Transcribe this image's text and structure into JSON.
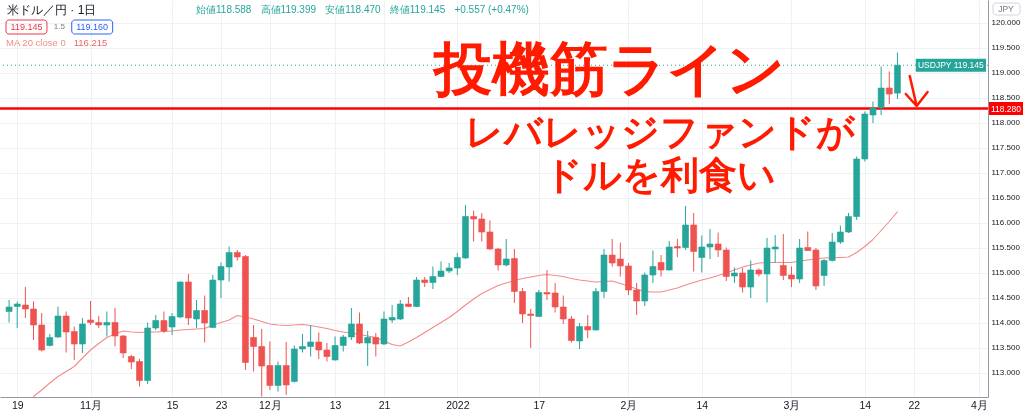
{
  "chart_data": {
    "type": "candlestick",
    "categories": [
      null,
      "19",
      null,
      null,
      null,
      null,
      null,
      null,
      null,
      null,
      "11月",
      null,
      null,
      null,
      null,
      null,
      null,
      null,
      null,
      null,
      "15",
      null,
      null,
      null,
      null,
      null,
      "23",
      null,
      null,
      null,
      null,
      null,
      "12月",
      null,
      null,
      null,
      null,
      null,
      null,
      null,
      "13",
      null,
      null,
      null,
      null,
      null,
      "21",
      null,
      null,
      null,
      null,
      null,
      null,
      null,
      null,
      "2022",
      null,
      null,
      null,
      null,
      null,
      null,
      null,
      null,
      null,
      "17",
      null,
      null,
      null,
      null,
      null,
      null,
      null,
      null,
      null,
      null,
      "2月",
      null,
      null,
      null,
      null,
      null,
      null,
      null,
      null,
      "14",
      null,
      null,
      null,
      null,
      null,
      null,
      null,
      null,
      null,
      null,
      "3月",
      null,
      null,
      null,
      null,
      null,
      null,
      null,
      null,
      "14",
      null,
      null,
      null,
      null,
      null,
      "22",
      null,
      null,
      null,
      null,
      null,
      null,
      null,
      "4月"
    ],
    "ohlc": [
      [
        114.22,
        114.45,
        114.0,
        114.31
      ],
      [
        114.32,
        114.42,
        113.89,
        114.37
      ],
      [
        114.35,
        114.71,
        114.09,
        114.27
      ],
      [
        114.27,
        114.42,
        113.65,
        113.95
      ],
      [
        113.95,
        114.19,
        113.42,
        113.45
      ],
      [
        113.54,
        113.77,
        113.52,
        113.7
      ],
      [
        113.71,
        114.32,
        113.69,
        114.13
      ],
      [
        114.13,
        114.22,
        113.4,
        113.81
      ],
      [
        113.82,
        113.92,
        113.25,
        113.57
      ],
      [
        113.57,
        114.09,
        113.39,
        113.97
      ],
      [
        114.05,
        114.43,
        113.95,
        114.0
      ],
      [
        114.0,
        114.13,
        113.89,
        113.95
      ],
      [
        113.95,
        114.22,
        113.72,
        114.0
      ],
      [
        114.0,
        114.29,
        113.52,
        113.73
      ],
      [
        113.73,
        113.75,
        113.29,
        113.39
      ],
      [
        113.32,
        113.35,
        113.07,
        113.21
      ],
      [
        113.22,
        113.27,
        112.72,
        112.84
      ],
      [
        112.84,
        114.0,
        112.77,
        113.89
      ],
      [
        113.89,
        114.15,
        113.85,
        114.04
      ],
      [
        114.04,
        114.22,
        113.79,
        113.83
      ],
      [
        113.91,
        114.19,
        113.75,
        114.12
      ],
      [
        114.11,
        114.82,
        114.09,
        114.81
      ],
      [
        114.81,
        114.97,
        113.95,
        114.09
      ],
      [
        114.07,
        114.45,
        113.89,
        114.24
      ],
      [
        114.24,
        114.54,
        113.6,
        113.99
      ],
      [
        113.9,
        114.95,
        113.89,
        114.85
      ],
      [
        114.85,
        115.2,
        114.49,
        115.12
      ],
      [
        115.11,
        115.52,
        114.82,
        115.4
      ],
      [
        115.4,
        115.45,
        115.24,
        115.31
      ],
      [
        115.32,
        115.35,
        113.05,
        113.2
      ],
      [
        113.7,
        113.95,
        113.02,
        113.52
      ],
      [
        113.52,
        113.87,
        112.52,
        113.13
      ],
      [
        113.14,
        113.62,
        112.65,
        112.74
      ],
      [
        112.74,
        113.22,
        112.62,
        113.14
      ],
      [
        113.14,
        113.61,
        112.55,
        112.75
      ],
      [
        112.82,
        113.54,
        112.8,
        113.47
      ],
      [
        113.47,
        113.77,
        113.4,
        113.52
      ],
      [
        113.52,
        113.95,
        113.32,
        113.61
      ],
      [
        113.61,
        113.8,
        113.27,
        113.45
      ],
      [
        113.45,
        113.59,
        113.22,
        113.32
      ],
      [
        113.25,
        113.72,
        113.24,
        113.54
      ],
      [
        113.54,
        113.75,
        113.42,
        113.71
      ],
      [
        113.71,
        114.29,
        113.65,
        113.97
      ],
      [
        113.97,
        114.2,
        113.57,
        113.59
      ],
      [
        113.59,
        113.83,
        113.13,
        113.7
      ],
      [
        113.7,
        113.79,
        113.32,
        113.57
      ],
      [
        113.57,
        114.22,
        113.55,
        114.07
      ],
      [
        114.05,
        114.35,
        113.99,
        114.1
      ],
      [
        114.07,
        114.45,
        114.05,
        114.37
      ],
      [
        114.37,
        114.51,
        114.31,
        114.32
      ],
      [
        114.32,
        114.91,
        114.31,
        114.85
      ],
      [
        114.85,
        114.91,
        114.71,
        114.8
      ],
      [
        114.8,
        115.12,
        114.67,
        114.92
      ],
      [
        114.92,
        115.22,
        114.91,
        115.03
      ],
      [
        115.03,
        115.19,
        114.99,
        115.09
      ],
      [
        115.09,
        115.39,
        114.95,
        115.3
      ],
      [
        115.29,
        116.35,
        115.27,
        116.12
      ],
      [
        116.12,
        116.24,
        115.62,
        116.07
      ],
      [
        116.07,
        116.19,
        115.62,
        115.81
      ],
      [
        115.81,
        116.04,
        115.45,
        115.47
      ],
      [
        115.47,
        115.49,
        115.04,
        115.15
      ],
      [
        115.15,
        115.67,
        115.12,
        115.27
      ],
      [
        115.28,
        115.47,
        114.39,
        114.62
      ],
      [
        114.62,
        114.69,
        113.99,
        114.17
      ],
      [
        114.17,
        114.27,
        113.49,
        114.14
      ],
      [
        114.12,
        114.65,
        114.11,
        114.6
      ],
      [
        114.6,
        115.05,
        114.45,
        114.57
      ],
      [
        114.59,
        114.79,
        114.2,
        114.31
      ],
      [
        114.31,
        114.54,
        113.97,
        114.07
      ],
      [
        114.07,
        114.13,
        113.6,
        113.64
      ],
      [
        113.63,
        113.99,
        113.47,
        113.92
      ],
      [
        113.92,
        114.15,
        113.69,
        113.85
      ],
      [
        113.85,
        114.69,
        113.84,
        114.62
      ],
      [
        114.62,
        115.47,
        114.49,
        115.35
      ],
      [
        115.35,
        115.67,
        115.12,
        115.19
      ],
      [
        115.27,
        115.6,
        114.92,
        115.13
      ],
      [
        115.13,
        115.19,
        114.55,
        114.65
      ],
      [
        114.65,
        114.79,
        114.15,
        114.43
      ],
      [
        114.43,
        115.0,
        114.33,
        114.95
      ],
      [
        114.95,
        115.44,
        114.79,
        115.12
      ],
      [
        115.2,
        115.35,
        114.92,
        115.05
      ],
      [
        115.05,
        115.63,
        115.04,
        115.51
      ],
      [
        115.52,
        115.67,
        115.31,
        115.49
      ],
      [
        115.5,
        116.33,
        115.45,
        115.95
      ],
      [
        115.95,
        116.19,
        115.02,
        115.42
      ],
      [
        115.3,
        115.74,
        115.0,
        115.51
      ],
      [
        115.51,
        115.87,
        115.27,
        115.57
      ],
      [
        115.57,
        115.8,
        115.31,
        115.45
      ],
      [
        115.45,
        115.5,
        114.83,
        114.92
      ],
      [
        114.93,
        115.1,
        114.79,
        114.99
      ],
      [
        114.99,
        115.09,
        114.6,
        114.71
      ],
      [
        114.71,
        115.24,
        114.49,
        115.05
      ],
      [
        115.05,
        115.08,
        114.92,
        114.97
      ],
      [
        114.97,
        115.69,
        114.4,
        115.49
      ],
      [
        115.47,
        115.75,
        115.19,
        115.51
      ],
      [
        115.14,
        115.77,
        114.85,
        114.94
      ],
      [
        114.95,
        115.12,
        114.71,
        114.87
      ],
      [
        114.87,
        115.67,
        114.79,
        115.49
      ],
      [
        115.5,
        115.82,
        115.44,
        115.44
      ],
      [
        115.45,
        115.49,
        114.65,
        114.73
      ],
      [
        114.94,
        115.27,
        114.73,
        115.24
      ],
      [
        115.24,
        115.79,
        115.22,
        115.61
      ],
      [
        115.61,
        115.94,
        115.57,
        115.81
      ],
      [
        115.81,
        116.19,
        115.79,
        116.12
      ],
      [
        116.12,
        117.32,
        116.05,
        117.27
      ],
      [
        117.27,
        118.22,
        117.22,
        118.17
      ],
      [
        118.15,
        118.42,
        117.99,
        118.29
      ],
      [
        118.29,
        119.12,
        118.15,
        118.69
      ],
      [
        118.69,
        119.02,
        118.37,
        118.57
      ],
      [
        118.588,
        119.399,
        118.47,
        119.145
      ],
      null,
      null,
      null,
      null,
      null,
      null,
      null,
      null,
      null,
      null
    ],
    "colors": [
      "#26a69a",
      "#26a69a",
      "#ef5350",
      "#ef5350",
      "#ef5350",
      "#26a69a",
      "#26a69a",
      "#ef5350",
      "#ef5350",
      "#26a69a",
      "#ef5350",
      "#ef5350",
      "#26a69a",
      "#ef5350",
      "#ef5350",
      "#ef5350",
      "#ef5350",
      "#26a69a",
      "#26a69a",
      "#ef5350",
      "#26a69a",
      "#26a69a",
      "#ef5350",
      "#26a69a",
      "#ef5350",
      "#26a69a",
      "#26a69a",
      "#26a69a",
      "#ef5350",
      "#ef5350",
      "#ef5350",
      "#ef5350",
      "#ef5350",
      "#26a69a",
      "#ef5350",
      "#26a69a",
      "#26a69a",
      "#26a69a",
      "#ef5350",
      "#ef5350",
      "#26a69a",
      "#26a69a",
      "#26a69a",
      "#ef5350",
      "#26a69a",
      "#ef5350",
      "#26a69a",
      "#26a69a",
      "#26a69a",
      "#ef5350",
      "#26a69a",
      "#ef5350",
      "#26a69a",
      "#26a69a",
      "#26a69a",
      "#26a69a",
      "#26a69a",
      "#ef5350",
      "#ef5350",
      "#ef5350",
      "#ef5350",
      "#26a69a",
      "#ef5350",
      "#ef5350",
      "#ef5350",
      "#26a69a",
      "#ef5350",
      "#ef5350",
      "#ef5350",
      "#ef5350",
      "#26a69a",
      "#ef5350",
      "#26a69a",
      "#26a69a",
      "#ef5350",
      "#ef5350",
      "#ef5350",
      "#ef5350",
      "#26a69a",
      "#26a69a",
      "#ef5350",
      "#26a69a",
      "#ef5350",
      "#26a69a",
      "#ef5350",
      "#26a69a",
      "#26a69a",
      "#ef5350",
      "#ef5350",
      "#26a69a",
      "#ef5350",
      "#26a69a",
      "#ef5350",
      "#26a69a",
      "#26a69a",
      "#ef5350",
      "#ef5350",
      "#26a69a",
      "#ef5350",
      "#ef5350",
      "#26a69a",
      "#26a69a",
      "#26a69a",
      "#26a69a",
      "#26a69a",
      "#26a69a",
      "#26a69a",
      "#26a69a",
      "#ef5350",
      "#26a69a",
      null,
      null,
      null,
      null,
      null,
      null,
      null,
      null,
      null,
      null
    ],
    "series": [
      {
        "name": "MA 20 close 0",
        "type": "line",
        "color": "#f48a8a",
        "values": [
          null,
          null,
          null,
          112.52,
          112.65,
          112.79,
          112.92,
          113.02,
          113.12,
          113.29,
          113.45,
          113.58,
          113.7,
          113.77,
          113.83,
          113.81,
          113.8,
          113.81,
          113.81,
          113.82,
          113.83,
          113.85,
          113.86,
          113.87,
          113.88,
          113.95,
          114.0,
          114.05,
          114.14,
          114.11,
          114.07,
          114.02,
          113.97,
          113.95,
          113.94,
          113.95,
          113.96,
          113.94,
          113.91,
          113.88,
          113.84,
          113.81,
          113.79,
          113.76,
          113.73,
          113.7,
          113.63,
          113.56,
          113.53,
          113.61,
          113.7,
          113.8,
          113.9,
          114.0,
          114.1,
          114.22,
          114.35,
          114.47,
          114.58,
          114.66,
          114.74,
          114.79,
          114.84,
          114.88,
          114.91,
          114.94,
          114.96,
          114.94,
          114.92,
          114.88,
          114.85,
          114.83,
          114.81,
          114.82,
          114.83,
          114.78,
          114.73,
          114.67,
          114.62,
          114.61,
          114.61,
          114.65,
          114.69,
          114.75,
          114.8,
          114.85,
          114.89,
          114.94,
          114.99,
          115.05,
          115.11,
          115.15,
          115.19,
          115.2,
          115.2,
          115.2,
          115.2,
          115.23,
          115.25,
          115.27,
          115.29,
          115.3,
          115.3,
          115.31,
          115.4,
          115.52,
          115.66,
          115.84,
          116.02,
          116.215,
          null,
          null,
          null,
          null,
          null,
          null,
          null,
          null,
          null,
          null
        ]
      }
    ],
    "ylim": [
      112.51,
      120.45
    ],
    "yticks": [
      {
        "value": 113,
        "label": "113.000"
      },
      {
        "value": 113.5,
        "label": "113.500"
      },
      {
        "value": 114,
        "label": "114.000"
      },
      {
        "value": 114.5,
        "label": "114.500"
      },
      {
        "value": 115,
        "label": "115.000"
      },
      {
        "value": 115.5,
        "label": "115.500"
      },
      {
        "value": 116,
        "label": "116.000"
      },
      {
        "value": 116.5,
        "label": "116.500"
      },
      {
        "value": 117,
        "label": "117.000"
      },
      {
        "value": 117.5,
        "label": "117.500"
      },
      {
        "value": 118,
        "label": "118.000"
      },
      {
        "value": 118.5,
        "label": "118.500"
      },
      {
        "value": 119,
        "label": "119.000"
      },
      {
        "value": 119.5,
        "label": "119.500"
      },
      {
        "value": 120,
        "label": "120.000"
      }
    ],
    "ref_lines": [
      {
        "axis": "y",
        "value": 118.28,
        "label": "118.280",
        "color": "#ff0000"
      },
      {
        "axis": "y",
        "value": 119.145,
        "label": "USDJPY 119.145",
        "color": "#26a69a",
        "line_style": "dotted"
      }
    ],
    "annotations": [
      "米ドル／円 · 1日",
      "始値118.588",
      "高値119.399",
      "安値118.470",
      "終値119.145",
      "+0.557 (+0.47%)",
      "119.145",
      "1.5",
      "119.160",
      "116.215",
      "JPY",
      "投機筋ライン",
      "レバレッジファンドが",
      "ドルを利食い"
    ],
    "grid": true,
    "legend": "top left"
  }
}
